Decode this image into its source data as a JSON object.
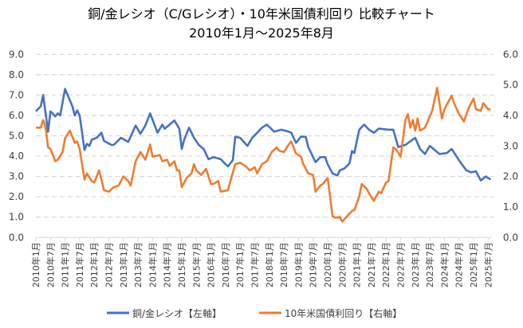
{
  "chart_data": {
    "type": "line",
    "title": "銅/金レシオ（C/Gレシオ）・10年米国債利回り 比較チャート",
    "subtitle": "2010年1月～2025年8月",
    "x_start": "2010-01",
    "x_unit": "month index from 2010年1月",
    "x_tick_labels": [
      "2010年1月",
      "2010年7月",
      "2011年1月",
      "2011年7月",
      "2012年1月",
      "2012年7月",
      "2013年1月",
      "2013年7月",
      "2014年1月",
      "2014年7月",
      "2015年1月",
      "2015年7月",
      "2016年1月",
      "2016年7月",
      "2017年1月",
      "2017年7月",
      "2018年1月",
      "2018年7月",
      "2019年1月",
      "2019年7月",
      "2020年1月",
      "2020年7月",
      "2021年1月",
      "2021年7月",
      "2022年1月",
      "2022年7月",
      "2023年1月",
      "2023年7月",
      "2024年1月",
      "2024年7月",
      "2025年1月",
      "2025年7月"
    ],
    "y_left": {
      "range": [
        0,
        9
      ],
      "ticks": [
        "0.0",
        "1.0",
        "2.0",
        "3.0",
        "4.0",
        "5.0",
        "6.0",
        "7.0",
        "8.0",
        "9.0"
      ]
    },
    "y_right": {
      "range": [
        0,
        6
      ],
      "ticks": [
        "0.0",
        "1.0",
        "2.0",
        "3.0",
        "4.0",
        "5.0",
        "6.0"
      ]
    },
    "grid": true,
    "legend_position": "bottom",
    "series": [
      {
        "name": "銅/金レシオ【左軸】",
        "axis": "left",
        "color": "#4472C4",
        "points": [
          [
            0,
            6.2
          ],
          [
            2,
            6.45
          ],
          [
            3,
            7.0
          ],
          [
            5,
            5.2
          ],
          [
            6,
            6.2
          ],
          [
            8,
            5.95
          ],
          [
            9,
            6.1
          ],
          [
            10,
            6.0
          ],
          [
            12,
            7.3
          ],
          [
            15,
            6.45
          ],
          [
            16,
            6.0
          ],
          [
            17,
            6.25
          ],
          [
            18,
            6.0
          ],
          [
            20,
            4.3
          ],
          [
            21,
            4.6
          ],
          [
            22,
            4.5
          ],
          [
            23,
            4.8
          ],
          [
            25,
            4.9
          ],
          [
            27,
            5.15
          ],
          [
            28,
            4.75
          ],
          [
            31,
            4.55
          ],
          [
            32,
            4.55
          ],
          [
            35,
            4.9
          ],
          [
            38,
            4.7
          ],
          [
            41,
            5.5
          ],
          [
            43,
            5.1
          ],
          [
            45,
            5.5
          ],
          [
            47,
            6.1
          ],
          [
            50,
            5.15
          ],
          [
            52,
            5.55
          ],
          [
            53,
            5.35
          ],
          [
            55,
            5.55
          ],
          [
            57,
            5.75
          ],
          [
            59,
            5.35
          ],
          [
            60,
            4.35
          ],
          [
            61,
            4.8
          ],
          [
            63,
            5.4
          ],
          [
            65,
            4.9
          ],
          [
            67,
            4.55
          ],
          [
            69,
            4.35
          ],
          [
            71,
            3.85
          ],
          [
            73,
            3.95
          ],
          [
            76,
            3.85
          ],
          [
            78,
            3.6
          ],
          [
            79,
            3.5
          ],
          [
            81,
            3.8
          ],
          [
            82,
            4.95
          ],
          [
            84,
            4.9
          ],
          [
            87,
            4.5
          ],
          [
            89,
            4.9
          ],
          [
            91,
            5.15
          ],
          [
            93,
            5.4
          ],
          [
            95,
            5.55
          ],
          [
            98,
            5.2
          ],
          [
            101,
            5.3
          ],
          [
            104,
            5.2
          ],
          [
            105,
            5.15
          ],
          [
            107,
            4.65
          ],
          [
            109,
            4.95
          ],
          [
            111,
            4.95
          ],
          [
            112,
            4.45
          ],
          [
            115,
            3.7
          ],
          [
            117,
            3.95
          ],
          [
            119,
            3.95
          ],
          [
            120,
            3.6
          ],
          [
            122,
            3.15
          ],
          [
            124,
            3.05
          ],
          [
            125,
            3.3
          ],
          [
            127,
            3.4
          ],
          [
            129,
            3.65
          ],
          [
            130,
            4.25
          ],
          [
            131,
            4.15
          ],
          [
            133,
            5.3
          ],
          [
            135,
            5.55
          ],
          [
            137,
            5.3
          ],
          [
            139,
            5.15
          ],
          [
            141,
            5.35
          ],
          [
            145,
            5.3
          ],
          [
            147,
            5.3
          ],
          [
            149,
            4.45
          ],
          [
            152,
            4.55
          ],
          [
            156,
            4.9
          ],
          [
            158,
            4.35
          ],
          [
            160,
            4.1
          ],
          [
            162,
            4.5
          ],
          [
            166,
            4.1
          ],
          [
            169,
            4.15
          ],
          [
            171,
            4.35
          ],
          [
            174,
            3.8
          ],
          [
            177,
            3.3
          ],
          [
            179,
            3.2
          ],
          [
            181,
            3.25
          ],
          [
            183,
            2.8
          ],
          [
            185,
            3.0
          ],
          [
            187,
            2.85
          ]
        ]
      },
      {
        "name": "10年米国債利回り【右軸】",
        "axis": "right",
        "color": "#ED7D31",
        "points": [
          [
            0,
            3.6
          ],
          [
            2,
            3.6
          ],
          [
            3,
            3.85
          ],
          [
            4,
            3.6
          ],
          [
            5,
            2.95
          ],
          [
            6,
            2.9
          ],
          [
            8,
            2.5
          ],
          [
            9,
            2.55
          ],
          [
            11,
            2.8
          ],
          [
            12,
            3.25
          ],
          [
            14,
            3.5
          ],
          [
            16,
            3.1
          ],
          [
            17,
            3.15
          ],
          [
            18,
            2.9
          ],
          [
            20,
            1.9
          ],
          [
            21,
            2.1
          ],
          [
            23,
            1.85
          ],
          [
            24,
            1.8
          ],
          [
            26,
            2.2
          ],
          [
            28,
            1.55
          ],
          [
            30,
            1.5
          ],
          [
            32,
            1.65
          ],
          [
            34,
            1.7
          ],
          [
            36,
            2.0
          ],
          [
            38,
            1.85
          ],
          [
            39,
            1.7
          ],
          [
            41,
            2.5
          ],
          [
            43,
            2.8
          ],
          [
            45,
            2.55
          ],
          [
            47,
            3.05
          ],
          [
            48,
            2.65
          ],
          [
            51,
            2.7
          ],
          [
            52,
            2.5
          ],
          [
            54,
            2.55
          ],
          [
            55,
            2.35
          ],
          [
            57,
            2.5
          ],
          [
            58,
            2.2
          ],
          [
            59,
            2.2
          ],
          [
            60,
            1.65
          ],
          [
            62,
            1.95
          ],
          [
            64,
            2.1
          ],
          [
            65,
            2.4
          ],
          [
            66,
            2.2
          ],
          [
            68,
            2.05
          ],
          [
            70,
            2.25
          ],
          [
            72,
            1.75
          ],
          [
            73,
            1.75
          ],
          [
            75,
            1.85
          ],
          [
            76,
            1.5
          ],
          [
            79,
            1.55
          ],
          [
            80,
            1.85
          ],
          [
            82,
            2.4
          ],
          [
            84,
            2.45
          ],
          [
            86,
            2.35
          ],
          [
            88,
            2.2
          ],
          [
            90,
            2.3
          ],
          [
            91,
            2.1
          ],
          [
            93,
            2.4
          ],
          [
            95,
            2.5
          ],
          [
            97,
            2.8
          ],
          [
            99,
            2.95
          ],
          [
            100,
            2.85
          ],
          [
            102,
            2.8
          ],
          [
            104,
            3.05
          ],
          [
            105,
            3.15
          ],
          [
            107,
            2.75
          ],
          [
            109,
            2.65
          ],
          [
            110,
            2.4
          ],
          [
            112,
            2.1
          ],
          [
            114,
            2.05
          ],
          [
            115,
            1.5
          ],
          [
            117,
            1.7
          ],
          [
            118,
            1.75
          ],
          [
            120,
            1.95
          ],
          [
            122,
            0.7
          ],
          [
            123,
            0.65
          ],
          [
            125,
            0.67
          ],
          [
            126,
            0.52
          ],
          [
            128,
            0.7
          ],
          [
            130,
            0.87
          ],
          [
            131,
            0.9
          ],
          [
            133,
            1.35
          ],
          [
            134,
            1.75
          ],
          [
            136,
            1.6
          ],
          [
            137,
            1.45
          ],
          [
            139,
            1.2
          ],
          [
            141,
            1.5
          ],
          [
            142,
            1.45
          ],
          [
            144,
            1.8
          ],
          [
            145,
            1.85
          ],
          [
            147,
            2.95
          ],
          [
            148,
            2.9
          ],
          [
            150,
            2.65
          ],
          [
            152,
            3.85
          ],
          [
            153,
            4.05
          ],
          [
            154,
            3.6
          ],
          [
            155,
            3.85
          ],
          [
            156,
            3.5
          ],
          [
            157,
            3.9
          ],
          [
            158,
            3.5
          ],
          [
            160,
            3.6
          ],
          [
            163,
            4.15
          ],
          [
            165,
            4.9
          ],
          [
            167,
            3.9
          ],
          [
            168,
            4.2
          ],
          [
            171,
            4.65
          ],
          [
            172,
            4.4
          ],
          [
            174,
            4.05
          ],
          [
            176,
            3.8
          ],
          [
            178,
            4.25
          ],
          [
            180,
            4.55
          ],
          [
            181,
            4.2
          ],
          [
            183,
            4.15
          ],
          [
            184,
            4.4
          ],
          [
            186,
            4.2
          ],
          [
            187,
            4.2
          ]
        ]
      }
    ]
  }
}
